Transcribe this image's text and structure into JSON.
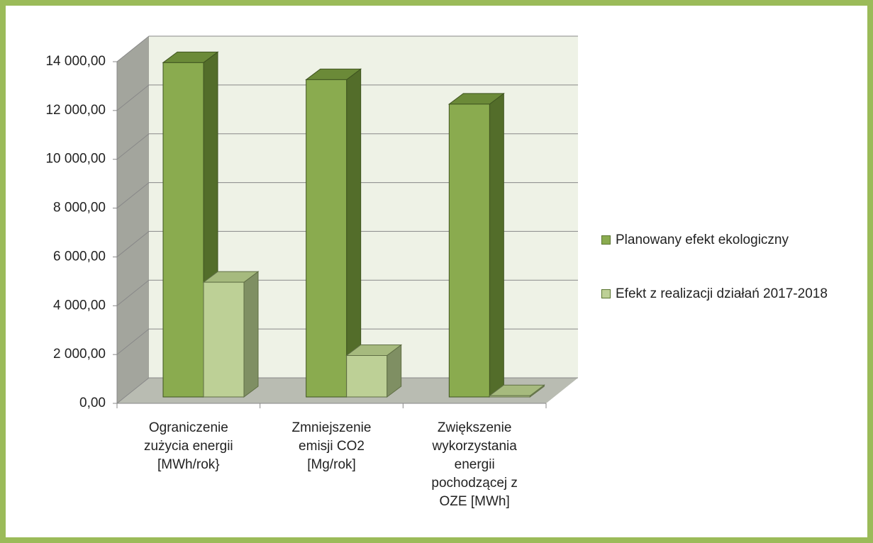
{
  "chart_data": {
    "type": "bar3d",
    "categories": [
      "Ograniczenie zużycia energii [MWh/rok}",
      "Zmniejszenie emisji CO2 [Mg/rok]",
      "Zwiększenie wykorzystania energii pochodzącej z OZE [MWh]"
    ],
    "series": [
      {
        "name": "Planowany efekt ekologiczny",
        "color": "#8aab4f",
        "values": [
          13700,
          13000,
          12000
        ]
      },
      {
        "name": "Efekt z realizacji działań 2017-2018",
        "color": "#bdd096",
        "values": [
          4700,
          1700,
          50
        ]
      }
    ],
    "ylim": [
      0,
      14000
    ],
    "yticks": [
      {
        "value": 0,
        "label": "0,00"
      },
      {
        "value": 2000,
        "label": "2 000,00"
      },
      {
        "value": 4000,
        "label": "4 000,00"
      },
      {
        "value": 6000,
        "label": "6 000,00"
      },
      {
        "value": 8000,
        "label": "8 000,00"
      },
      {
        "value": 10000,
        "label": "10 000,00"
      },
      {
        "value": 12000,
        "label": "12 000,00"
      },
      {
        "value": 14000,
        "label": "14 000,00"
      }
    ],
    "grid": true,
    "legend": "right"
  }
}
